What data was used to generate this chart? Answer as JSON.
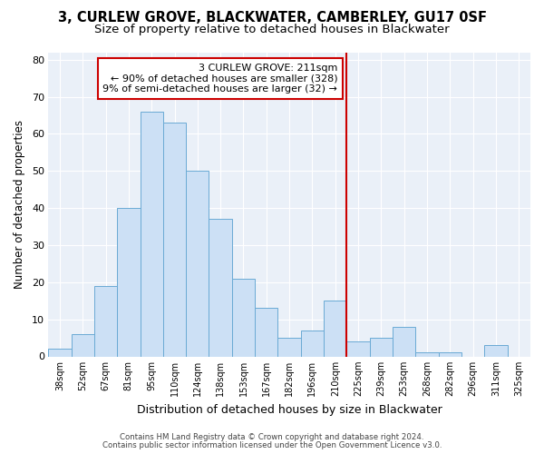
{
  "title1": "3, CURLEW GROVE, BLACKWATER, CAMBERLEY, GU17 0SF",
  "title2": "Size of property relative to detached houses in Blackwater",
  "xlabel": "Distribution of detached houses by size in Blackwater",
  "ylabel": "Number of detached properties",
  "bar_labels": [
    "38sqm",
    "52sqm",
    "67sqm",
    "81sqm",
    "95sqm",
    "110sqm",
    "124sqm",
    "138sqm",
    "153sqm",
    "167sqm",
    "182sqm",
    "196sqm",
    "210sqm",
    "225sqm",
    "239sqm",
    "253sqm",
    "268sqm",
    "282sqm",
    "296sqm",
    "311sqm",
    "325sqm"
  ],
  "bar_values": [
    2,
    6,
    19,
    40,
    66,
    63,
    50,
    37,
    21,
    13,
    5,
    7,
    15,
    4,
    5,
    8,
    1,
    1,
    0,
    3,
    0
  ],
  "bar_color": "#cce0f5",
  "bar_edge_color": "#6aaad4",
  "vline_index": 12,
  "vline_color": "#cc0000",
  "annotation_title": "3 CURLEW GROVE: 211sqm",
  "annotation_line1": "← 90% of detached houses are smaller (328)",
  "annotation_line2": "9% of semi-detached houses are larger (32) →",
  "annotation_box_color": "#cc0000",
  "ylim": [
    0,
    82
  ],
  "yticks": [
    0,
    10,
    20,
    30,
    40,
    50,
    60,
    70,
    80
  ],
  "footer1": "Contains HM Land Registry data © Crown copyright and database right 2024.",
  "footer2": "Contains public sector information licensed under the Open Government Licence v3.0.",
  "bg_color": "#eaf0f8",
  "fig_bg_color": "#ffffff",
  "title1_fontsize": 10.5,
  "title2_fontsize": 9.5,
  "grid_color": "#ffffff"
}
